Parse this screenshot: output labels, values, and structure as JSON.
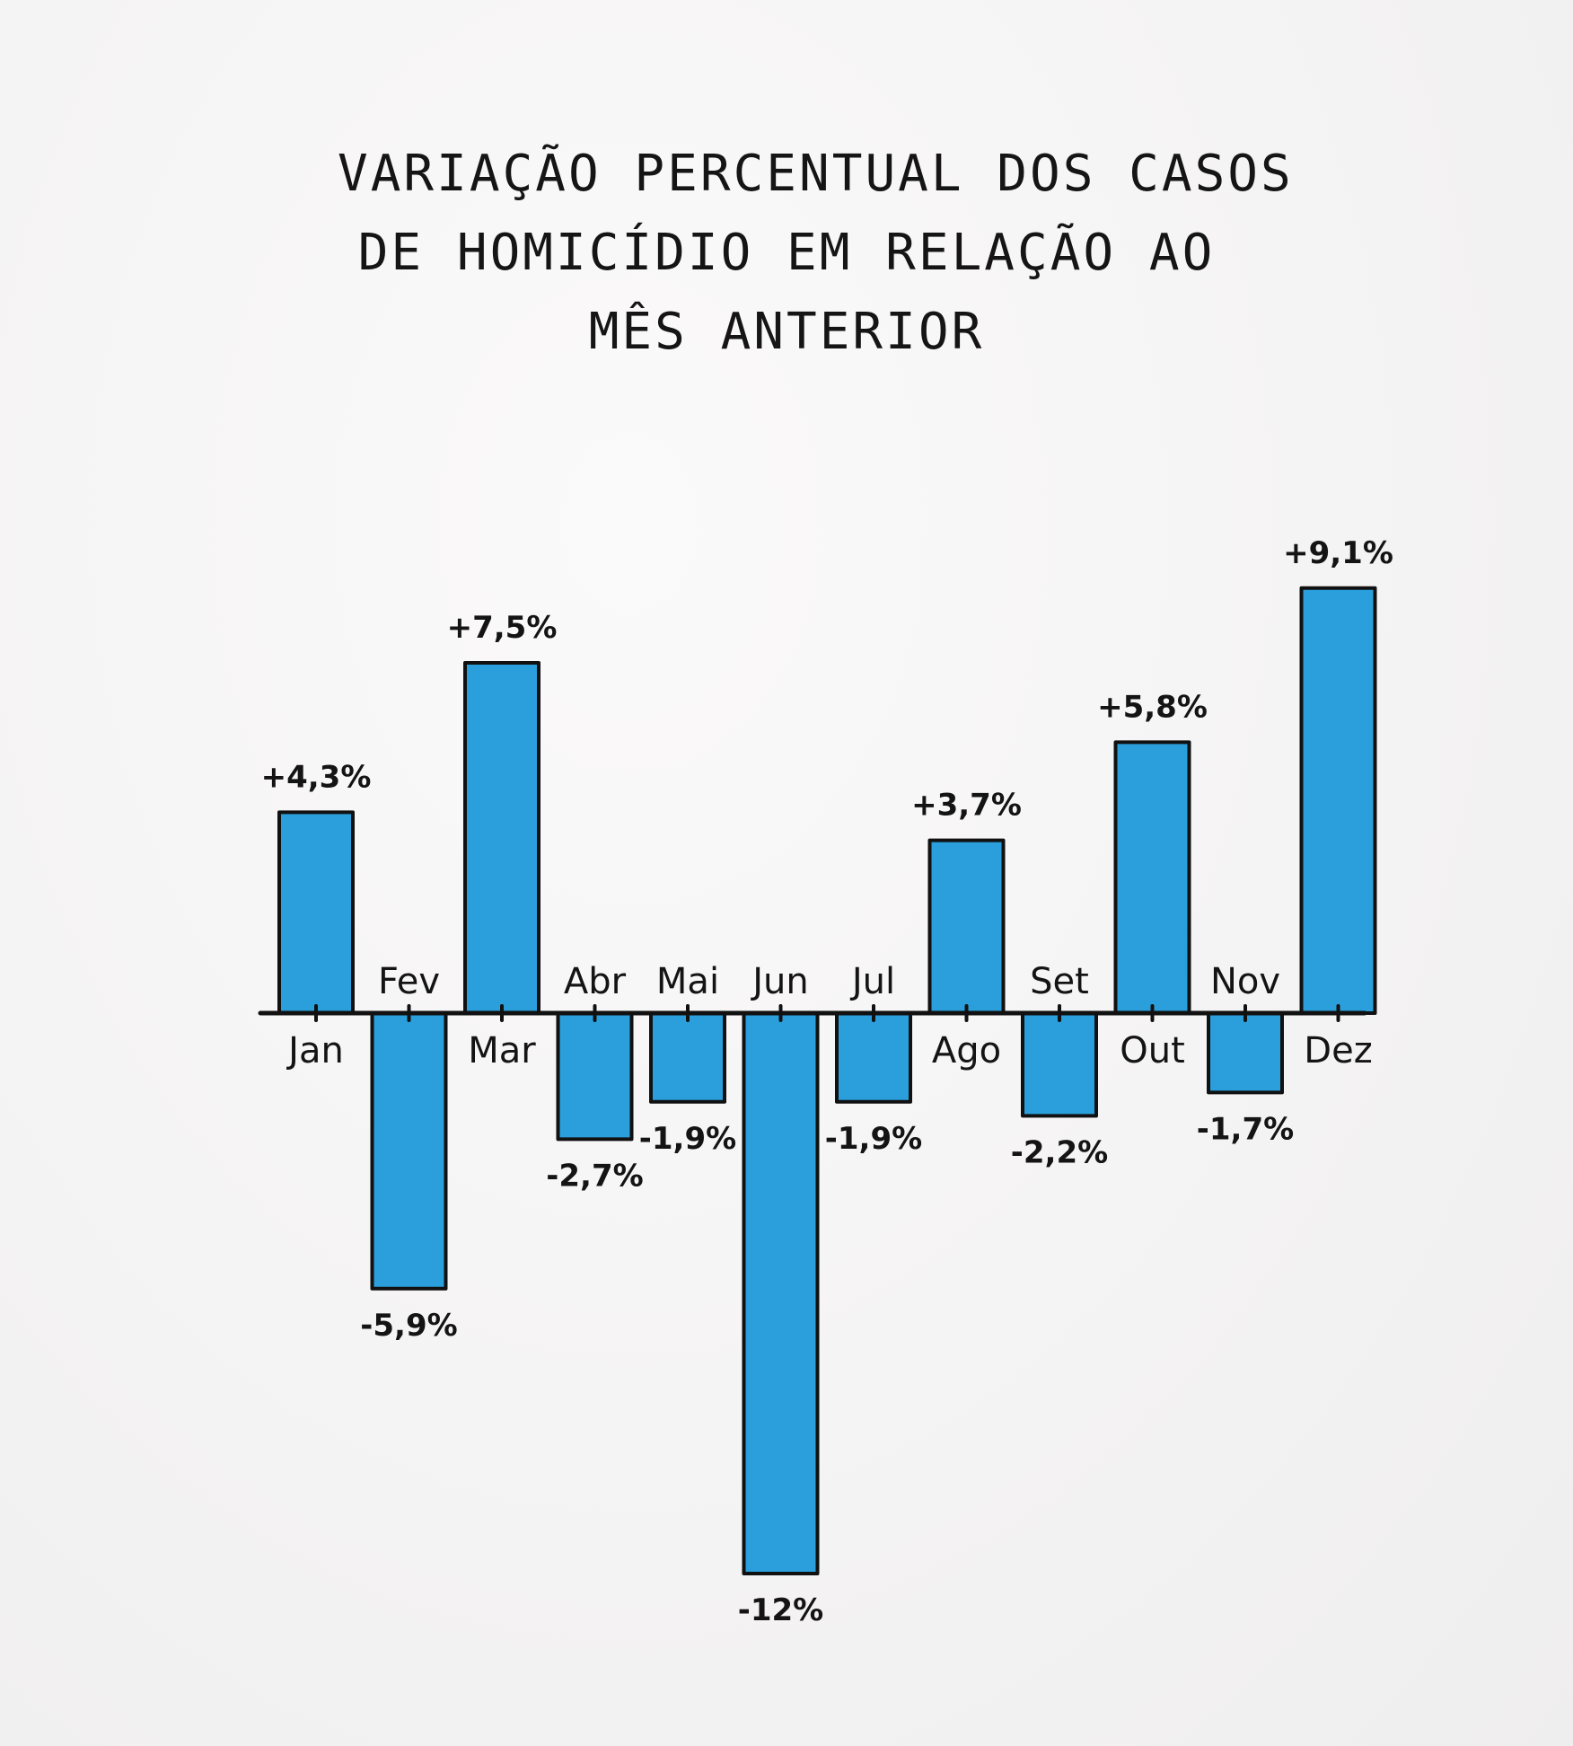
{
  "chart_data": {
    "type": "bar",
    "title_lines": [
      "Variação percentual dos casos",
      "de homicídio em relação ao",
      "mês anterior"
    ],
    "categories": [
      "Jan",
      "Fev",
      "Mar",
      "Abr",
      "Mai",
      "Jun",
      "Jul",
      "Ago",
      "Set",
      "Out",
      "Nov",
      "Dez"
    ],
    "values": [
      4.3,
      -5.9,
      7.5,
      -2.7,
      -1.9,
      -12,
      -1.9,
      3.7,
      -2.2,
      5.8,
      -1.7,
      9.1
    ],
    "data_labels": [
      "+4,3%",
      "-5,9%",
      "+7,5%",
      "-2,7%",
      "-1,9%",
      "-12%",
      "-1,9%",
      "+3,7%",
      "-2,2%",
      "+5,8%",
      "-1,7%",
      "+9,1%"
    ],
    "ylim": [
      -12.5,
      10
    ],
    "grid": false,
    "legend": "none",
    "bar_color": "#2a9fdc",
    "stroke_color": "#111111"
  }
}
